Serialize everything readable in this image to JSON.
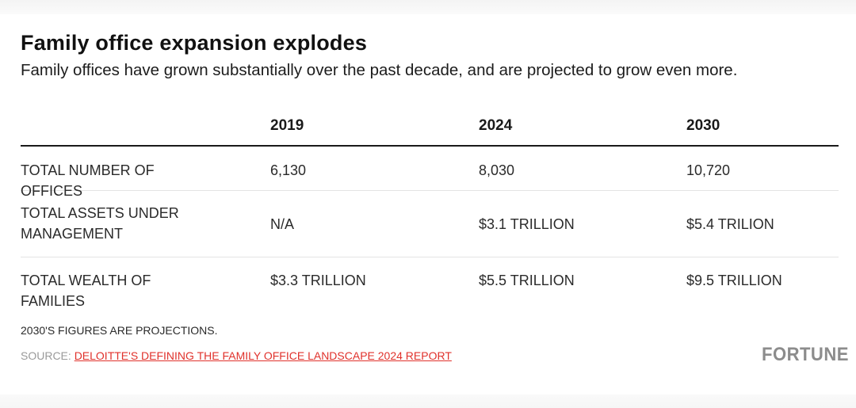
{
  "chart_data": {
    "type": "table",
    "title": "Family office expansion explodes",
    "subtitle": "Family offices have grown substantially over the past decade, and are projected to grow even more.",
    "columns": [
      "",
      "2019",
      "2024",
      "2030"
    ],
    "rows": [
      {
        "label": "TOTAL NUMBER OF OFFICES",
        "values": [
          "6,130",
          "8,030",
          "10,720"
        ]
      },
      {
        "label": "TOTAL ASSETS UNDER MANAGEMENT",
        "values": [
          "N/A",
          "$3.1 TRILLION",
          "$5.4 TRILION"
        ]
      },
      {
        "label": "TOTAL WEALTH OF FAMILIES",
        "values": [
          "$3.3 TRILLION",
          "$5.5 TRILLION",
          "$9.5 TRILLION"
        ]
      }
    ],
    "annotations": [
      "2030'S FIGURES ARE PROJECTIONS."
    ]
  },
  "footer": {
    "footnote": "2030'S FIGURES ARE PROJECTIONS.",
    "source_prefix": "SOURCE: ",
    "source_link": "DELOITTE'S DEFINING THE FAMILY OFFICE LANDSCAPE 2024 REPORT",
    "link_color": "#e0312b",
    "logo": "FORTUNE"
  }
}
